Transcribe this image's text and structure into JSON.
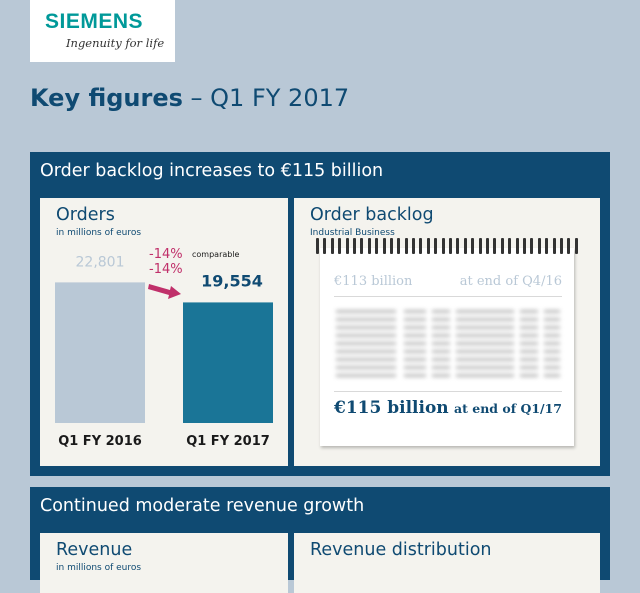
{
  "brand": {
    "name": "SIEMENS",
    "tagline": "Ingenuity for life"
  },
  "page": {
    "title_strong": "Key figures",
    "title_rest": " – Q1 FY 2017"
  },
  "sections": [
    {
      "title": "Order backlog increases to €115 billion"
    },
    {
      "title": "Continued moderate revenue growth"
    }
  ],
  "orders_panel": {
    "title": "Orders",
    "subtitle": "in millions of euros",
    "change_comparable": "-14%",
    "comparable_label": "comparable",
    "change_nominal": "-14%"
  },
  "backlog_panel": {
    "title": "Order backlog",
    "subtitle": "Industrial Business",
    "start_amount": "€113 billion",
    "start_when": "at end of Q4/16",
    "end_amount": "€115 billion",
    "end_when": "at end of Q1/17"
  },
  "revenue_panel": {
    "title": "Revenue",
    "subtitle": "in millions of euros"
  },
  "distribution_panel": {
    "title": "Revenue distribution"
  },
  "colors": {
    "navy": "#0f4a72",
    "bar_prior": "#b9c8d6",
    "bar_current": "#1a7597",
    "accent": "#c0306a",
    "brand": "#009999"
  },
  "chart_data": {
    "type": "bar",
    "categories": [
      "Q1 FY 2016",
      "Q1 FY 2017"
    ],
    "values": [
      22801,
      19554
    ],
    "value_labels": [
      "22,801",
      "19,554"
    ],
    "title": "Orders",
    "ylim": [
      0,
      24000
    ]
  }
}
